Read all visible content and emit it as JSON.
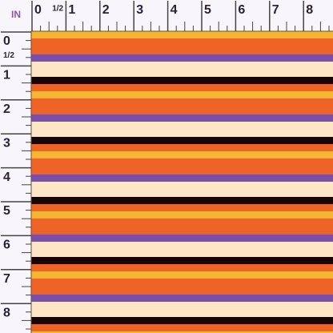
{
  "ruler": {
    "unit": "IN",
    "top_labels": [
      "0",
      "1/2",
      "1",
      "2",
      "3",
      "4",
      "5",
      "6",
      "7",
      "8"
    ],
    "left_labels": [
      "0",
      "1/2",
      "1",
      "2",
      "3",
      "4",
      "5",
      "6",
      "7",
      "8"
    ]
  }
}
